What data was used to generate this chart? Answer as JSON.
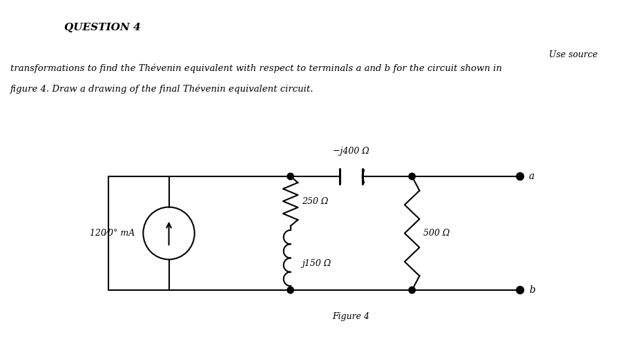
{
  "title": "QUESTION 4",
  "use_source_text": "Use source",
  "body_line1": "transformations to find the Thévenin equivalent with respect to terminals a and b for the circuit shown in",
  "body_line2": "figure 4. Draw a drawing of the final Thévenin equivalent circuit.",
  "figure_label": "Figure 4",
  "current_source_label": "120⁄0° mA",
  "cap_label": "−j400 Ω",
  "r250_label": "250 Ω",
  "r500_label": "500 Ω",
  "ind_label": "j150 Ω",
  "terminal_a": "a",
  "terminal_b": "b",
  "bg_color": "#ffffff",
  "line_color": "#000000"
}
